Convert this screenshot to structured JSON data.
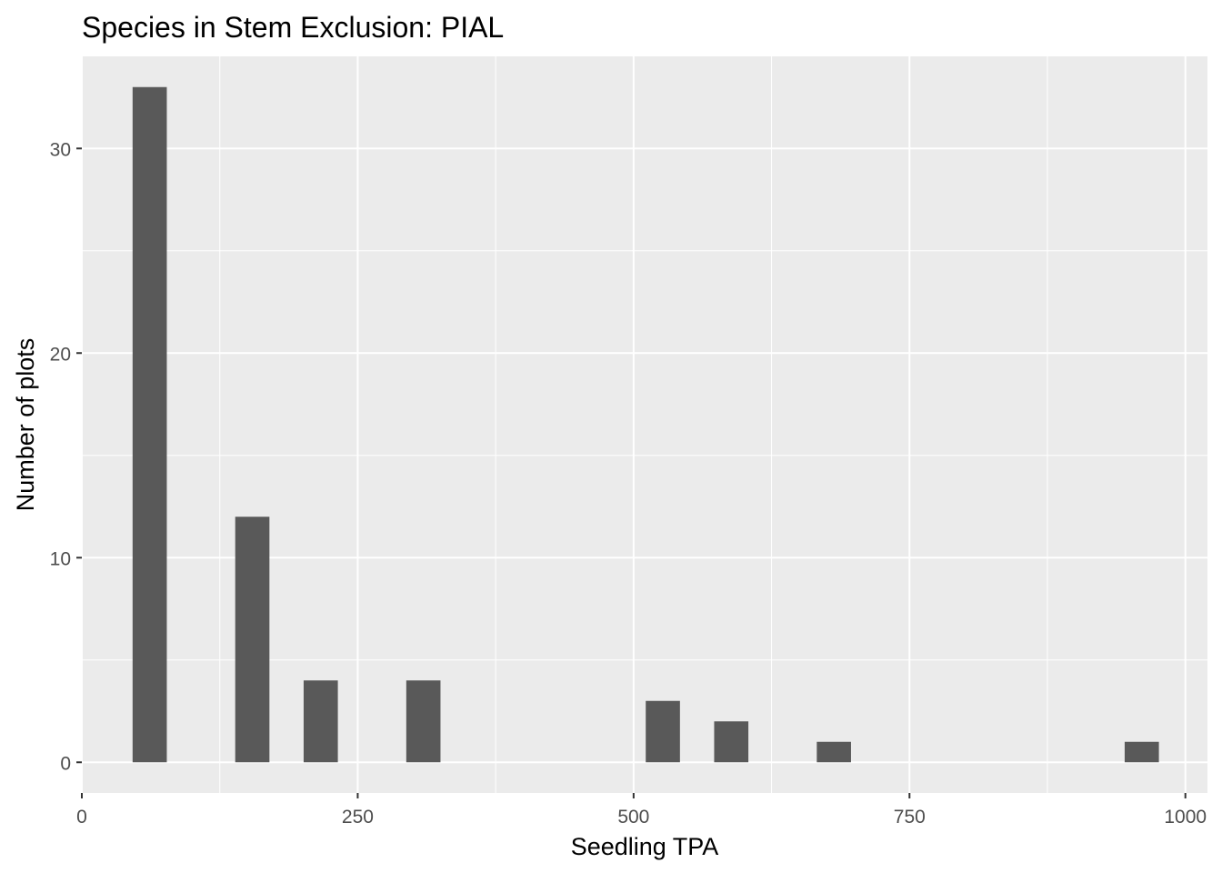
{
  "chart_data": {
    "type": "bar",
    "title": "Species in Stem Exclusion: PIAL",
    "xlabel": "Seedling TPA",
    "ylabel": "Number of plots",
    "xlim": [
      0,
      1020
    ],
    "ylim": [
      -1.5,
      34.5
    ],
    "x_ticks": [
      0,
      250,
      500,
      750,
      1000
    ],
    "x_tick_labels": [
      "0",
      "250",
      "500",
      "750",
      "1000"
    ],
    "y_ticks": [
      0,
      10,
      20,
      30
    ],
    "y_tick_labels": [
      "0",
      "10",
      "20",
      "30"
    ],
    "bin_width": 31,
    "bars": [
      {
        "x": 61.5,
        "count": 33
      },
      {
        "x": 154.5,
        "count": 12
      },
      {
        "x": 216.5,
        "count": 4
      },
      {
        "x": 309.5,
        "count": 4
      },
      {
        "x": 526.5,
        "count": 3
      },
      {
        "x": 588.5,
        "count": 2
      },
      {
        "x": 681.5,
        "count": 1
      },
      {
        "x": 960.5,
        "count": 1
      }
    ],
    "grid": true,
    "bar_color": "#595959",
    "panel_background": "#ebebeb",
    "grid_color": "#ffffff"
  }
}
